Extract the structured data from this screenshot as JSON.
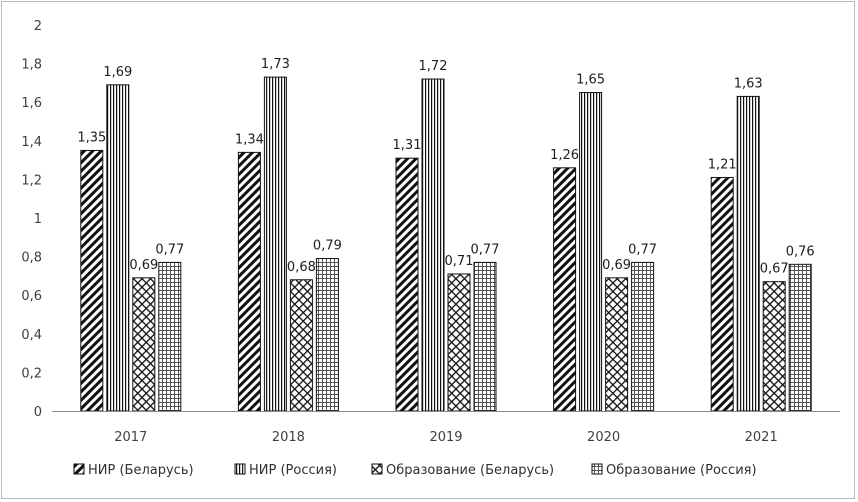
{
  "chart_data": {
    "type": "bar",
    "title": "",
    "xlabel": "",
    "ylabel": "",
    "ylim": [
      0,
      2
    ],
    "ytick_step": 0.2,
    "grid": false,
    "legend_position": "bottom",
    "categories": [
      "2017",
      "2018",
      "2019",
      "2020",
      "2021"
    ],
    "series": [
      {
        "name": "НИР (Беларусь)",
        "pattern": "diagonal",
        "values": [
          1.35,
          1.34,
          1.31,
          1.26,
          1.21
        ],
        "labels": [
          "1,35",
          "1,34",
          "1,31",
          "1,26",
          "1,21"
        ]
      },
      {
        "name": "НИР (Россия)",
        "pattern": "vertical",
        "values": [
          1.69,
          1.73,
          1.72,
          1.65,
          1.63
        ],
        "labels": [
          "1,69",
          "1,73",
          "1,72",
          "1,65",
          "1,63"
        ]
      },
      {
        "name": "Образование (Беларусь)",
        "pattern": "crosshatch",
        "values": [
          0.69,
          0.68,
          0.71,
          0.69,
          0.67
        ],
        "labels": [
          "0,69",
          "0,68",
          "0,71",
          "0,69",
          "0,67"
        ]
      },
      {
        "name": "Образование (Россия)",
        "pattern": "grid",
        "values": [
          0.77,
          0.79,
          0.77,
          0.77,
          0.76
        ],
        "labels": [
          "0,77",
          "0,79",
          "0,77",
          "0,77",
          "0,76"
        ]
      }
    ],
    "ytick_labels": [
      "0",
      "0,2",
      "0,4",
      "0,6",
      "0,8",
      "1",
      "1,2",
      "1,4",
      "1,6",
      "1,8",
      "2"
    ],
    "colors": {
      "bar_stroke": "#111111",
      "pattern_ink": "#111111",
      "axis": "#8c8c8c",
      "text": "#404040"
    }
  }
}
